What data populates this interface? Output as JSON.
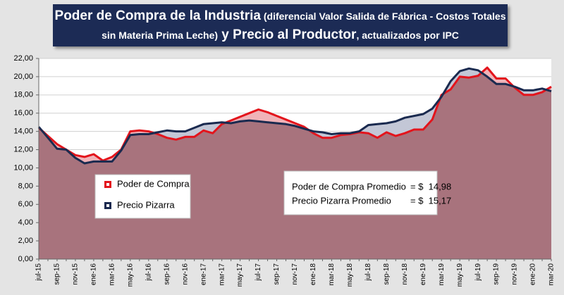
{
  "chart_data": {
    "type": "area-line",
    "title_parts": [
      "Poder de Compra de la Industria",
      " (diferencial Valor Salida de Fábrica - Costos Totales",
      "sin Materia Prima Leche)",
      " y Precio al Productor",
      ", actualizados por IPC"
    ],
    "categories": [
      "jul-15",
      null,
      "sep-15",
      null,
      "nov-15",
      null,
      "ene-16",
      null,
      "mar-16",
      null,
      "may-16",
      null,
      "jul-16",
      null,
      "sep-16",
      null,
      "nov-16",
      null,
      "ene-17",
      null,
      "mar-17",
      null,
      "may-17",
      null,
      "jul-17",
      null,
      "sep-17",
      null,
      "nov-17",
      null,
      "ene-18",
      null,
      "mar-18",
      null,
      "may-18",
      null,
      "jul-18",
      null,
      "sep-18",
      null,
      "nov-18",
      null,
      "ene-19",
      null,
      "mar-19",
      null,
      "may-19",
      null,
      "jul-19",
      null,
      "sep-19",
      null,
      "nov-19",
      null,
      "ene-20",
      null,
      "mar-20"
    ],
    "series": [
      {
        "name": "Poder de Compra",
        "color": "#e3141c",
        "fill": "#f0b3b8",
        "values": [
          14.4,
          13.5,
          12.6,
          12.0,
          11.4,
          11.2,
          11.5,
          10.8,
          11.2,
          12.0,
          14.0,
          14.1,
          14.0,
          13.7,
          13.3,
          13.1,
          13.4,
          13.4,
          14.1,
          13.8,
          14.8,
          15.2,
          15.6,
          16.0,
          16.4,
          16.1,
          15.7,
          15.3,
          14.9,
          14.5,
          13.8,
          13.3,
          13.3,
          13.6,
          13.7,
          13.9,
          13.8,
          13.3,
          13.9,
          13.5,
          13.8,
          14.2,
          14.2,
          15.3,
          18.0,
          18.6,
          20.0,
          19.9,
          20.1,
          21.0,
          19.8,
          19.8,
          18.8,
          18.0,
          18.0,
          18.3,
          18.9
        ]
      },
      {
        "name": "Precio Pizarra",
        "color": "#1a2a4f",
        "fill": "#c3c7d6",
        "values": [
          14.5,
          13.3,
          12.1,
          12.0,
          11.1,
          10.5,
          10.7,
          10.7,
          10.7,
          11.9,
          13.6,
          13.7,
          13.7,
          13.9,
          14.1,
          14.0,
          14.0,
          14.4,
          14.8,
          14.9,
          15.0,
          14.9,
          15.1,
          15.2,
          15.1,
          15.0,
          14.9,
          14.8,
          14.6,
          14.3,
          14.0,
          13.9,
          13.7,
          13.8,
          13.8,
          14.0,
          14.7,
          14.8,
          14.9,
          15.1,
          15.5,
          15.7,
          15.9,
          16.5,
          17.8,
          19.5,
          20.6,
          20.9,
          20.7,
          20.0,
          19.2,
          19.2,
          18.9,
          18.5,
          18.5,
          18.7,
          18.4
        ]
      }
    ],
    "overlap_color": "#a8737d",
    "ylim": [
      0,
      22
    ],
    "yticks": [
      {
        "value": 0,
        "label": "0,00"
      },
      {
        "value": 2,
        "label": "2,00"
      },
      {
        "value": 4,
        "label": "4,00"
      },
      {
        "value": 6,
        "label": "6,00"
      },
      {
        "value": 8,
        "label": "8,00"
      },
      {
        "value": 10,
        "label": "10,00"
      },
      {
        "value": 12,
        "label": "12,00"
      },
      {
        "value": 14,
        "label": "14,00"
      },
      {
        "value": 16,
        "label": "16,00"
      },
      {
        "value": 18,
        "label": "18,00"
      },
      {
        "value": 20,
        "label": "20,00"
      },
      {
        "value": 22,
        "label": "22,00"
      }
    ],
    "grid": true,
    "annotations": [
      {
        "label": "Poder de Compra Promedio",
        "value_label": "= $  14,98"
      },
      {
        "label": "Precio Pizarra Promedio",
        "value_label": "= $  15,17"
      }
    ]
  }
}
